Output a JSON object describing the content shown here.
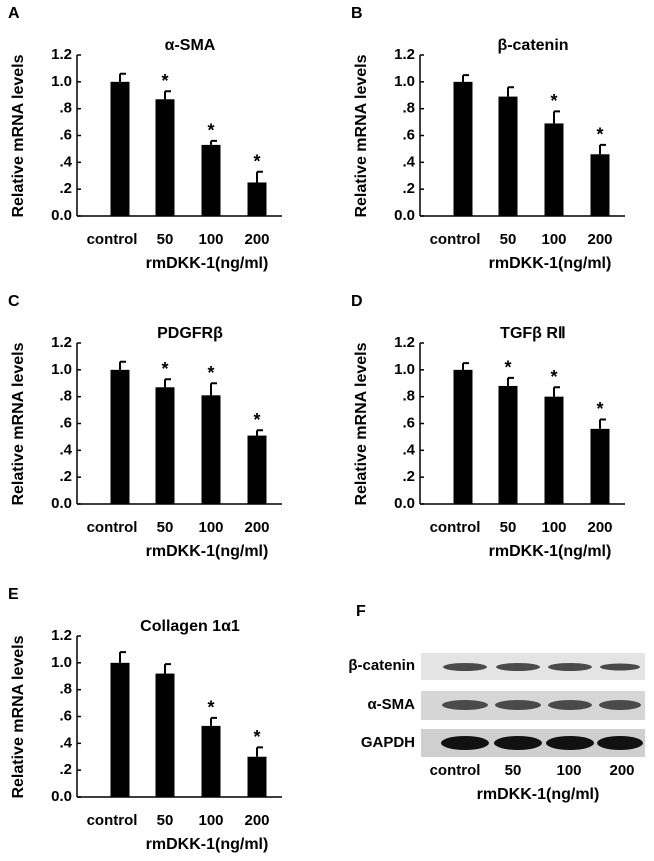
{
  "chart_data": [
    {
      "type": "bar",
      "panel": "A",
      "title": "α-SMA",
      "ylabel": "Relative mRNA levels",
      "xlabel": "rmDKK-1(ng/ml)",
      "categories": [
        "control",
        "50",
        "100",
        "200"
      ],
      "values": [
        1.0,
        0.87,
        0.53,
        0.25
      ],
      "errors": [
        0.06,
        0.06,
        0.03,
        0.08
      ],
      "annotations": [
        null,
        "*",
        "*",
        "*"
      ],
      "color": "#000000",
      "ylim": [
        0,
        1.2
      ],
      "yticks": [
        {
          "value": 0,
          "label": "0.0"
        },
        {
          "value": 0.2,
          "label": ".2"
        },
        {
          "value": 0.4,
          "label": ".4"
        },
        {
          "value": 0.6,
          "label": ".6"
        },
        {
          "value": 0.8,
          "label": ".8"
        },
        {
          "value": 1.0,
          "label": "1.0"
        },
        {
          "value": 1.2,
          "label": "1.2"
        }
      ]
    },
    {
      "type": "bar",
      "panel": "B",
      "title": "β-catenin",
      "ylabel": "Relative mRNA levels",
      "xlabel": "rmDKK-1(ng/ml)",
      "categories": [
        "control",
        "50",
        "100",
        "200"
      ],
      "values": [
        1.0,
        0.89,
        0.69,
        0.46
      ],
      "errors": [
        0.05,
        0.07,
        0.09,
        0.07
      ],
      "annotations": [
        null,
        null,
        "*",
        "*"
      ],
      "color": "#000000",
      "ylim": [
        0,
        1.2
      ],
      "yticks": [
        {
          "value": 0,
          "label": "0.0"
        },
        {
          "value": 0.2,
          "label": ".2"
        },
        {
          "value": 0.4,
          "label": ".4"
        },
        {
          "value": 0.6,
          "label": ".6"
        },
        {
          "value": 0.8,
          "label": ".8"
        },
        {
          "value": 1.0,
          "label": "1.0"
        },
        {
          "value": 1.2,
          "label": "1.2"
        }
      ]
    },
    {
      "type": "bar",
      "panel": "C",
      "title": "PDGFRβ",
      "ylabel": "Relative mRNA levels",
      "xlabel": "rmDKK-1(ng/ml)",
      "categories": [
        "control",
        "50",
        "100",
        "200"
      ],
      "values": [
        1.0,
        0.87,
        0.81,
        0.51
      ],
      "errors": [
        0.06,
        0.06,
        0.09,
        0.04
      ],
      "annotations": [
        null,
        "*",
        "*",
        "*"
      ],
      "color": "#000000",
      "ylim": [
        0,
        1.2
      ],
      "yticks": [
        {
          "value": 0,
          "label": "0.0"
        },
        {
          "value": 0.2,
          "label": ".2"
        },
        {
          "value": 0.4,
          "label": ".4"
        },
        {
          "value": 0.6,
          "label": ".6"
        },
        {
          "value": 0.8,
          "label": ".8"
        },
        {
          "value": 1.0,
          "label": "1.0"
        },
        {
          "value": 1.2,
          "label": "1.2"
        }
      ]
    },
    {
      "type": "bar",
      "panel": "D",
      "title": "TGFβ RⅡ",
      "ylabel": "Relative mRNA levels",
      "xlabel": "rmDKK-1(ng/ml)",
      "categories": [
        "control",
        "50",
        "100",
        "200"
      ],
      "values": [
        1.0,
        0.88,
        0.8,
        0.56
      ],
      "errors": [
        0.05,
        0.06,
        0.07,
        0.07
      ],
      "annotations": [
        null,
        "*",
        "*",
        "*"
      ],
      "color": "#000000",
      "ylim": [
        0,
        1.2
      ],
      "yticks": [
        {
          "value": 0,
          "label": "0.0"
        },
        {
          "value": 0.2,
          "label": ".2"
        },
        {
          "value": 0.4,
          "label": ".4"
        },
        {
          "value": 0.6,
          "label": ".6"
        },
        {
          "value": 0.8,
          "label": ".8"
        },
        {
          "value": 1.0,
          "label": "1.0"
        },
        {
          "value": 1.2,
          "label": "1.2"
        }
      ]
    },
    {
      "type": "bar",
      "panel": "E",
      "title": "Collagen 1α1",
      "ylabel": "Relative mRNA levels",
      "xlabel": "rmDKK-1(ng/ml)",
      "categories": [
        "control",
        "50",
        "100",
        "200"
      ],
      "values": [
        1.0,
        0.92,
        0.53,
        0.3
      ],
      "errors": [
        0.08,
        0.07,
        0.06,
        0.07
      ],
      "annotations": [
        null,
        null,
        "*",
        "*"
      ],
      "color": "#000000",
      "ylim": [
        0,
        1.2
      ],
      "yticks": [
        {
          "value": 0,
          "label": "0.0"
        },
        {
          "value": 0.2,
          "label": ".2"
        },
        {
          "value": 0.4,
          "label": ".4"
        },
        {
          "value": 0.6,
          "label": ".6"
        },
        {
          "value": 0.8,
          "label": ".8"
        },
        {
          "value": 1.0,
          "label": "1.0"
        },
        {
          "value": 1.2,
          "label": "1.2"
        }
      ]
    }
  ],
  "blot": {
    "panel": "F",
    "rows": [
      "β-catenin",
      "α-SMA",
      "GAPDH"
    ],
    "lanes": [
      "control",
      "50",
      "100",
      "200"
    ],
    "xlabel": "rmDKK-1(ng/ml)"
  }
}
